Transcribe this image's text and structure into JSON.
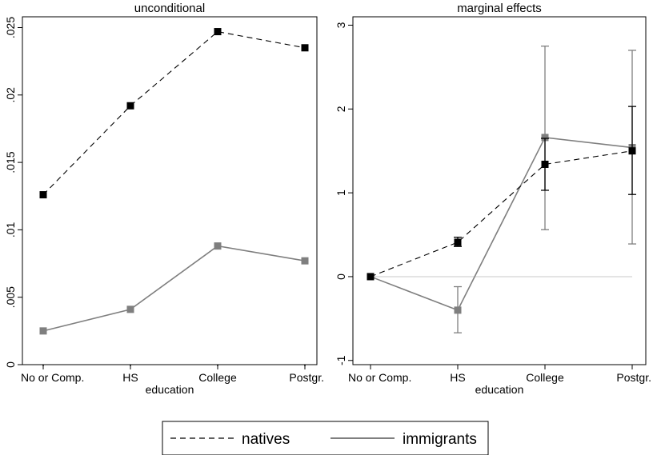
{
  "colors": {
    "natives": "#000000",
    "immigrants": "#7f7f7f",
    "zero_line": "#c8c8c8",
    "frame": "#000000"
  },
  "legend": {
    "position": "bottom-center",
    "items": [
      {
        "label": "natives",
        "style": "dashed",
        "color": "#000000"
      },
      {
        "label": "immigrants",
        "style": "solid",
        "color": "#7f7f7f"
      }
    ]
  },
  "chart_data": [
    {
      "type": "line",
      "title": "unconditional",
      "xlabel": "education",
      "ylabel": "",
      "categories": [
        "No or Comp.",
        "HS",
        "College",
        "Postgr."
      ],
      "ylim": [
        0,
        0.0258
      ],
      "yticks": [
        0,
        0.005,
        0.01,
        0.015,
        0.02,
        0.025
      ],
      "ytick_labels": [
        "0",
        ".005",
        ".01",
        ".015",
        ".02",
        ".025"
      ],
      "grid": false,
      "series": [
        {
          "name": "natives",
          "style": "dashed",
          "values": [
            0.0126,
            0.0192,
            0.0247,
            0.0235
          ]
        },
        {
          "name": "immigrants",
          "style": "solid",
          "values": [
            0.0025,
            0.0041,
            0.0088,
            0.0077
          ]
        }
      ]
    },
    {
      "type": "line",
      "title": "marginal effects",
      "xlabel": "education",
      "ylabel": "",
      "categories": [
        "No or Comp.",
        "HS",
        "College",
        "Postgr."
      ],
      "ylim": [
        -1.05,
        3.1
      ],
      "yticks": [
        -1,
        0,
        1,
        2,
        3
      ],
      "ytick_labels": [
        "-1",
        "0",
        "1",
        "2",
        "3"
      ],
      "reference_line": 0,
      "grid": false,
      "series": [
        {
          "name": "natives",
          "style": "dashed",
          "values": [
            0,
            0.41,
            1.34,
            1.5
          ],
          "ci_low": [
            null,
            0.36,
            1.03,
            0.98
          ],
          "ci_high": [
            null,
            0.47,
            1.65,
            2.03
          ]
        },
        {
          "name": "immigrants",
          "style": "solid",
          "values": [
            0,
            -0.4,
            1.66,
            1.54
          ],
          "ci_low": [
            null,
            -0.67,
            0.56,
            0.39
          ],
          "ci_high": [
            null,
            -0.12,
            2.75,
            2.7
          ]
        }
      ]
    }
  ]
}
